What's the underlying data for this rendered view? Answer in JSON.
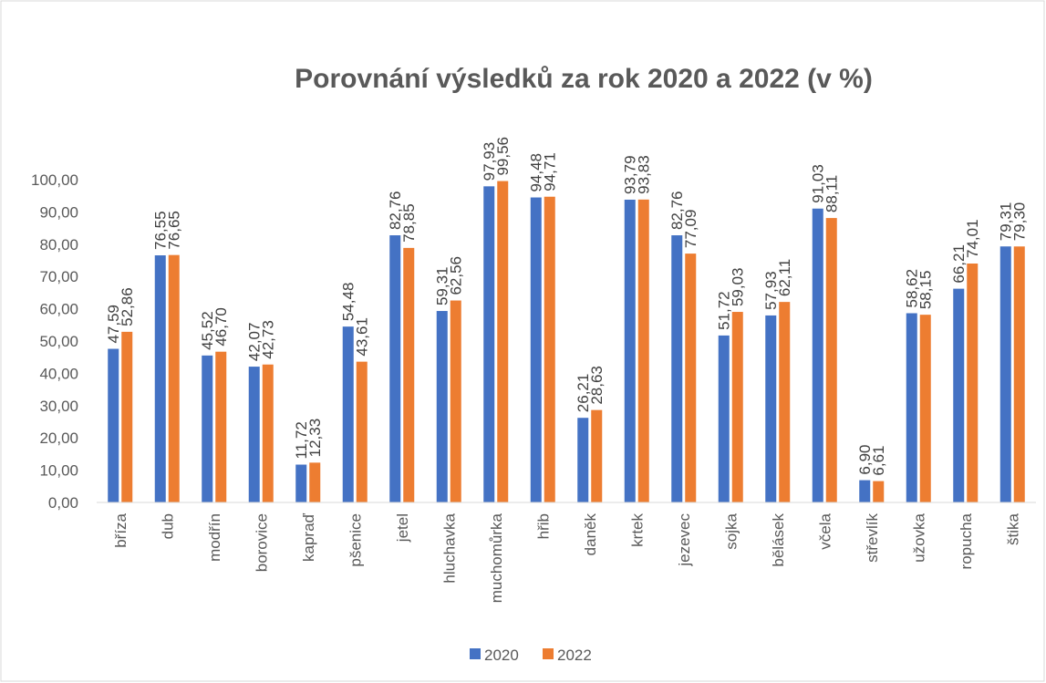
{
  "chart_data": {
    "type": "bar",
    "title": "Porovnání výsledků za rok 2020 a 2022 (v %)",
    "categories": [
      "bříza",
      "dub",
      "modřín",
      "borovice",
      "kapraď",
      "pšenice",
      "jetel",
      "hluchavka",
      "muchomůrka",
      "hřib",
      "daněk",
      "krtek",
      "jezevec",
      "sojka",
      "bělásek",
      "včela",
      "střevlík",
      "užovka",
      "ropucha",
      "štika"
    ],
    "series": [
      {
        "name": "2020",
        "color": "#4472c4",
        "values": [
          47.59,
          76.55,
          45.52,
          42.07,
          11.72,
          54.48,
          82.76,
          59.31,
          97.93,
          94.48,
          26.21,
          93.79,
          82.76,
          51.72,
          57.93,
          91.03,
          6.9,
          58.62,
          66.21,
          79.31
        ],
        "value_labels": [
          "47,59",
          "76,55",
          "45,52",
          "42,07",
          "11,72",
          "54,48",
          "82,76",
          "59,31",
          "97,93",
          "94,48",
          "26,21",
          "93,79",
          "82,76",
          "51,72",
          "57,93",
          "91,03",
          "6,90",
          "58,62",
          "66,21",
          "79,31"
        ]
      },
      {
        "name": "2022",
        "color": "#ed7d31",
        "values": [
          52.86,
          76.65,
          46.7,
          42.73,
          12.33,
          43.61,
          78.85,
          62.56,
          99.56,
          94.71,
          28.63,
          93.83,
          77.09,
          59.03,
          62.11,
          88.11,
          6.61,
          58.15,
          74.01,
          79.3
        ],
        "value_labels": [
          "52,86",
          "76,65",
          "46,70",
          "42,73",
          "12,33",
          "43,61",
          "78,85",
          "62,56",
          "99,56",
          "94,71",
          "28,63",
          "93,83",
          "77,09",
          "59,03",
          "62,11",
          "88,11",
          "6,61",
          "58,15",
          "74,01",
          "79,30"
        ]
      }
    ],
    "ylim": [
      0,
      100
    ],
    "yticks": [
      {
        "value": 0,
        "label": "0,00"
      },
      {
        "value": 10,
        "label": "10,00"
      },
      {
        "value": 20,
        "label": "20,00"
      },
      {
        "value": 30,
        "label": "30,00"
      },
      {
        "value": 40,
        "label": "40,00"
      },
      {
        "value": 50,
        "label": "50,00"
      },
      {
        "value": 60,
        "label": "60,00"
      },
      {
        "value": 70,
        "label": "70,00"
      },
      {
        "value": 80,
        "label": "80,00"
      },
      {
        "value": 90,
        "label": "90,00"
      },
      {
        "value": 100,
        "label": "100,00"
      }
    ],
    "grid": false,
    "legend": "bottom"
  }
}
